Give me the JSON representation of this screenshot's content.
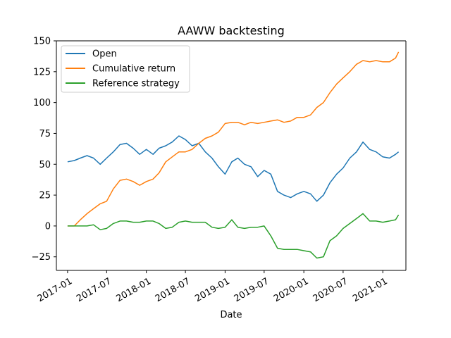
{
  "chart_data": {
    "type": "line",
    "title": "AAWW backtesting",
    "xlabel": "Date",
    "ylabel": "",
    "x_range": [
      "2016-11-10",
      "2021-04-18"
    ],
    "ylim": [
      -36,
      150
    ],
    "legend_position": "top-left",
    "grid": false,
    "x_ticks": [
      {
        "date": "2017-01-01",
        "label": "2017-01"
      },
      {
        "date": "2017-07-01",
        "label": "2017-07"
      },
      {
        "date": "2018-01-01",
        "label": "2018-01"
      },
      {
        "date": "2018-07-01",
        "label": "2018-07"
      },
      {
        "date": "2019-01-01",
        "label": "2019-01"
      },
      {
        "date": "2019-07-01",
        "label": "2019-07"
      },
      {
        "date": "2020-01-01",
        "label": "2020-01"
      },
      {
        "date": "2020-07-01",
        "label": "2020-07"
      },
      {
        "date": "2021-01-01",
        "label": "2021-01"
      }
    ],
    "y_ticks": [
      -25,
      0,
      25,
      50,
      75,
      100,
      125,
      150
    ],
    "series": [
      {
        "name": "Open",
        "color": "#1f77b4",
        "points": [
          [
            "2017-01-01",
            52
          ],
          [
            "2017-02-01",
            53
          ],
          [
            "2017-03-01",
            55
          ],
          [
            "2017-04-01",
            57
          ],
          [
            "2017-05-01",
            55
          ],
          [
            "2017-06-01",
            50
          ],
          [
            "2017-07-01",
            55
          ],
          [
            "2017-08-01",
            60
          ],
          [
            "2017-09-01",
            66
          ],
          [
            "2017-10-01",
            67
          ],
          [
            "2017-11-01",
            63
          ],
          [
            "2017-12-01",
            58
          ],
          [
            "2018-01-01",
            62
          ],
          [
            "2018-02-01",
            58
          ],
          [
            "2018-03-01",
            63
          ],
          [
            "2018-04-01",
            65
          ],
          [
            "2018-05-01",
            68
          ],
          [
            "2018-06-01",
            73
          ],
          [
            "2018-07-01",
            70
          ],
          [
            "2018-08-01",
            65
          ],
          [
            "2018-09-01",
            67
          ],
          [
            "2018-10-01",
            60
          ],
          [
            "2018-11-01",
            55
          ],
          [
            "2018-12-01",
            48
          ],
          [
            "2019-01-01",
            42
          ],
          [
            "2019-02-01",
            52
          ],
          [
            "2019-03-01",
            55
          ],
          [
            "2019-04-01",
            50
          ],
          [
            "2019-05-01",
            48
          ],
          [
            "2019-06-01",
            40
          ],
          [
            "2019-07-01",
            45
          ],
          [
            "2019-08-01",
            42
          ],
          [
            "2019-09-01",
            28
          ],
          [
            "2019-10-01",
            25
          ],
          [
            "2019-11-01",
            23
          ],
          [
            "2019-12-01",
            26
          ],
          [
            "2020-01-01",
            28
          ],
          [
            "2020-02-01",
            26
          ],
          [
            "2020-03-01",
            20
          ],
          [
            "2020-04-01",
            25
          ],
          [
            "2020-05-01",
            35
          ],
          [
            "2020-06-01",
            42
          ],
          [
            "2020-07-01",
            47
          ],
          [
            "2020-08-01",
            55
          ],
          [
            "2020-09-01",
            60
          ],
          [
            "2020-10-01",
            68
          ],
          [
            "2020-11-01",
            62
          ],
          [
            "2020-12-01",
            60
          ],
          [
            "2021-01-01",
            56
          ],
          [
            "2021-02-01",
            55
          ],
          [
            "2021-03-01",
            58
          ],
          [
            "2021-03-15",
            60
          ]
        ]
      },
      {
        "name": "Cumulative return",
        "color": "#ff7f0e",
        "points": [
          [
            "2017-01-01",
            0
          ],
          [
            "2017-02-01",
            0
          ],
          [
            "2017-03-01",
            5
          ],
          [
            "2017-04-01",
            10
          ],
          [
            "2017-05-01",
            14
          ],
          [
            "2017-06-01",
            18
          ],
          [
            "2017-07-01",
            20
          ],
          [
            "2017-08-01",
            30
          ],
          [
            "2017-09-01",
            37
          ],
          [
            "2017-10-01",
            38
          ],
          [
            "2017-11-01",
            36
          ],
          [
            "2017-12-01",
            33
          ],
          [
            "2018-01-01",
            36
          ],
          [
            "2018-02-01",
            38
          ],
          [
            "2018-03-01",
            43
          ],
          [
            "2018-04-01",
            52
          ],
          [
            "2018-05-01",
            56
          ],
          [
            "2018-06-01",
            60
          ],
          [
            "2018-07-01",
            60
          ],
          [
            "2018-08-01",
            62
          ],
          [
            "2018-09-01",
            67
          ],
          [
            "2018-10-01",
            71
          ],
          [
            "2018-11-01",
            73
          ],
          [
            "2018-12-01",
            76
          ],
          [
            "2019-01-01",
            83
          ],
          [
            "2019-02-01",
            84
          ],
          [
            "2019-03-01",
            84
          ],
          [
            "2019-04-01",
            82
          ],
          [
            "2019-05-01",
            84
          ],
          [
            "2019-06-01",
            83
          ],
          [
            "2019-07-01",
            84
          ],
          [
            "2019-08-01",
            85
          ],
          [
            "2019-09-01",
            86
          ],
          [
            "2019-10-01",
            84
          ],
          [
            "2019-11-01",
            85
          ],
          [
            "2019-12-01",
            88
          ],
          [
            "2020-01-01",
            88
          ],
          [
            "2020-02-01",
            90
          ],
          [
            "2020-03-01",
            96
          ],
          [
            "2020-04-01",
            100
          ],
          [
            "2020-05-01",
            108
          ],
          [
            "2020-06-01",
            115
          ],
          [
            "2020-07-01",
            120
          ],
          [
            "2020-08-01",
            125
          ],
          [
            "2020-09-01",
            131
          ],
          [
            "2020-10-01",
            134
          ],
          [
            "2020-11-01",
            133
          ],
          [
            "2020-12-01",
            134
          ],
          [
            "2021-01-01",
            133
          ],
          [
            "2021-02-01",
            133
          ],
          [
            "2021-03-01",
            136
          ],
          [
            "2021-03-15",
            141
          ]
        ]
      },
      {
        "name": "Reference strategy",
        "color": "#2ca02c",
        "points": [
          [
            "2017-01-01",
            0
          ],
          [
            "2017-02-01",
            0
          ],
          [
            "2017-03-01",
            0
          ],
          [
            "2017-04-01",
            0
          ],
          [
            "2017-05-01",
            1
          ],
          [
            "2017-06-01",
            -3
          ],
          [
            "2017-07-01",
            -2
          ],
          [
            "2017-08-01",
            2
          ],
          [
            "2017-09-01",
            4
          ],
          [
            "2017-10-01",
            4
          ],
          [
            "2017-11-01",
            3
          ],
          [
            "2017-12-01",
            3
          ],
          [
            "2018-01-01",
            4
          ],
          [
            "2018-02-01",
            4
          ],
          [
            "2018-03-01",
            2
          ],
          [
            "2018-04-01",
            -2
          ],
          [
            "2018-05-01",
            -1
          ],
          [
            "2018-06-01",
            3
          ],
          [
            "2018-07-01",
            4
          ],
          [
            "2018-08-01",
            3
          ],
          [
            "2018-09-01",
            3
          ],
          [
            "2018-10-01",
            3
          ],
          [
            "2018-11-01",
            -1
          ],
          [
            "2018-12-01",
            -2
          ],
          [
            "2019-01-01",
            -1
          ],
          [
            "2019-02-01",
            5
          ],
          [
            "2019-03-01",
            -1
          ],
          [
            "2019-04-01",
            -2
          ],
          [
            "2019-05-01",
            -1
          ],
          [
            "2019-06-01",
            -1
          ],
          [
            "2019-07-01",
            0
          ],
          [
            "2019-08-01",
            -8
          ],
          [
            "2019-09-01",
            -18
          ],
          [
            "2019-10-01",
            -19
          ],
          [
            "2019-11-01",
            -19
          ],
          [
            "2019-12-01",
            -19
          ],
          [
            "2020-01-01",
            -20
          ],
          [
            "2020-02-01",
            -21
          ],
          [
            "2020-03-01",
            -26
          ],
          [
            "2020-04-01",
            -25
          ],
          [
            "2020-05-01",
            -12
          ],
          [
            "2020-06-01",
            -8
          ],
          [
            "2020-07-01",
            -2
          ],
          [
            "2020-08-01",
            2
          ],
          [
            "2020-09-01",
            6
          ],
          [
            "2020-10-01",
            10
          ],
          [
            "2020-11-01",
            4
          ],
          [
            "2020-12-01",
            4
          ],
          [
            "2021-01-01",
            3
          ],
          [
            "2021-02-01",
            4
          ],
          [
            "2021-03-01",
            5
          ],
          [
            "2021-03-15",
            9
          ]
        ]
      }
    ]
  }
}
